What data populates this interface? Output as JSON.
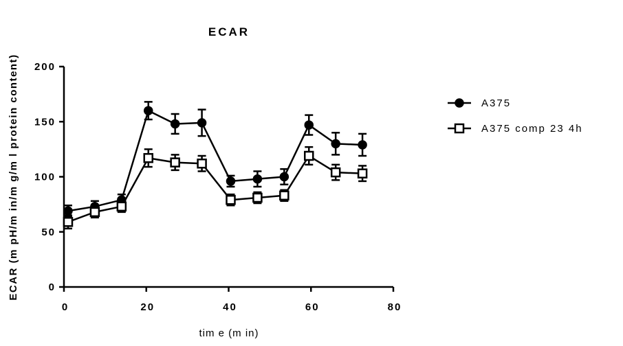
{
  "chart_data": {
    "type": "line",
    "title": "ECAR",
    "xlabel": "tim e  (m in)",
    "ylabel": "ECAR  (m pH/m in/m g/m l protein content)",
    "xlim": [
      0,
      80
    ],
    "ylim": [
      0,
      200
    ],
    "xticks": [
      "0",
      "20",
      "40",
      "60",
      "80"
    ],
    "yticks": [
      "0",
      "50",
      "100",
      "150",
      "200"
    ],
    "legend_position": "right",
    "grid": false,
    "series": [
      {
        "name": "A375",
        "marker": "filled-circle",
        "color": "#000000",
        "x": [
          1,
          7.5,
          14,
          20.5,
          27,
          33.5,
          40.5,
          47,
          53.5,
          59.5,
          66,
          72.5
        ],
        "y": [
          69,
          73,
          79,
          160,
          148,
          149,
          96,
          98,
          100,
          147,
          130,
          129
        ],
        "err": [
          5,
          5,
          5,
          8,
          9,
          12,
          5,
          7,
          7,
          9,
          10,
          10
        ]
      },
      {
        "name": "A375 comp 23 4h",
        "marker": "open-square",
        "color": "#000000",
        "x": [
          1,
          7.5,
          14,
          20.5,
          27,
          33.5,
          40.5,
          47,
          53.5,
          59.5,
          66,
          72.5
        ],
        "y": [
          59,
          68,
          73,
          117,
          113,
          112,
          79,
          81,
          83,
          119,
          104,
          103
        ],
        "err": [
          6,
          5,
          5,
          8,
          7,
          7,
          5,
          5,
          5,
          8,
          7,
          7
        ]
      }
    ]
  }
}
